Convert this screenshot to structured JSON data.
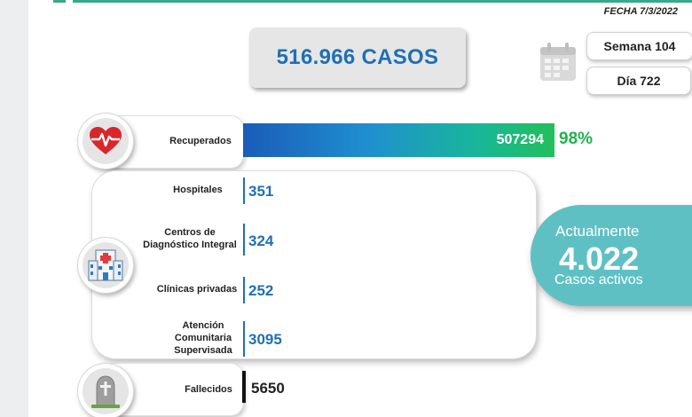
{
  "header": {
    "fecha": "FECHA 7/3/2022"
  },
  "summary": {
    "cases": "516.966 CASOS",
    "week": "Semana 104",
    "day": "Día 722"
  },
  "recovered": {
    "label": "Recuperados",
    "value": "507294",
    "percent": "98%"
  },
  "care": [
    {
      "label": "Hospitales",
      "value": "351"
    },
    {
      "label": "Centros de\nDiagnóstico Integral",
      "value": "324"
    },
    {
      "label": "Clínicas privadas",
      "value": "252"
    },
    {
      "label": "Atención\nComunitaria\nSupervisada",
      "value": "3095"
    }
  ],
  "active": {
    "title": "Actualmente",
    "count": "4.022",
    "subtitle": "Casos activos"
  },
  "deceased": {
    "label": "Fallecidos",
    "value": "5650"
  },
  "icons": [
    "heart-pulse-icon",
    "calendar-icon",
    "hospital-icon",
    "tombstone-icon"
  ],
  "colors": {
    "primary_blue": "#1f6fb5",
    "green": "#22b24c",
    "teal": "#5fc0c4"
  }
}
